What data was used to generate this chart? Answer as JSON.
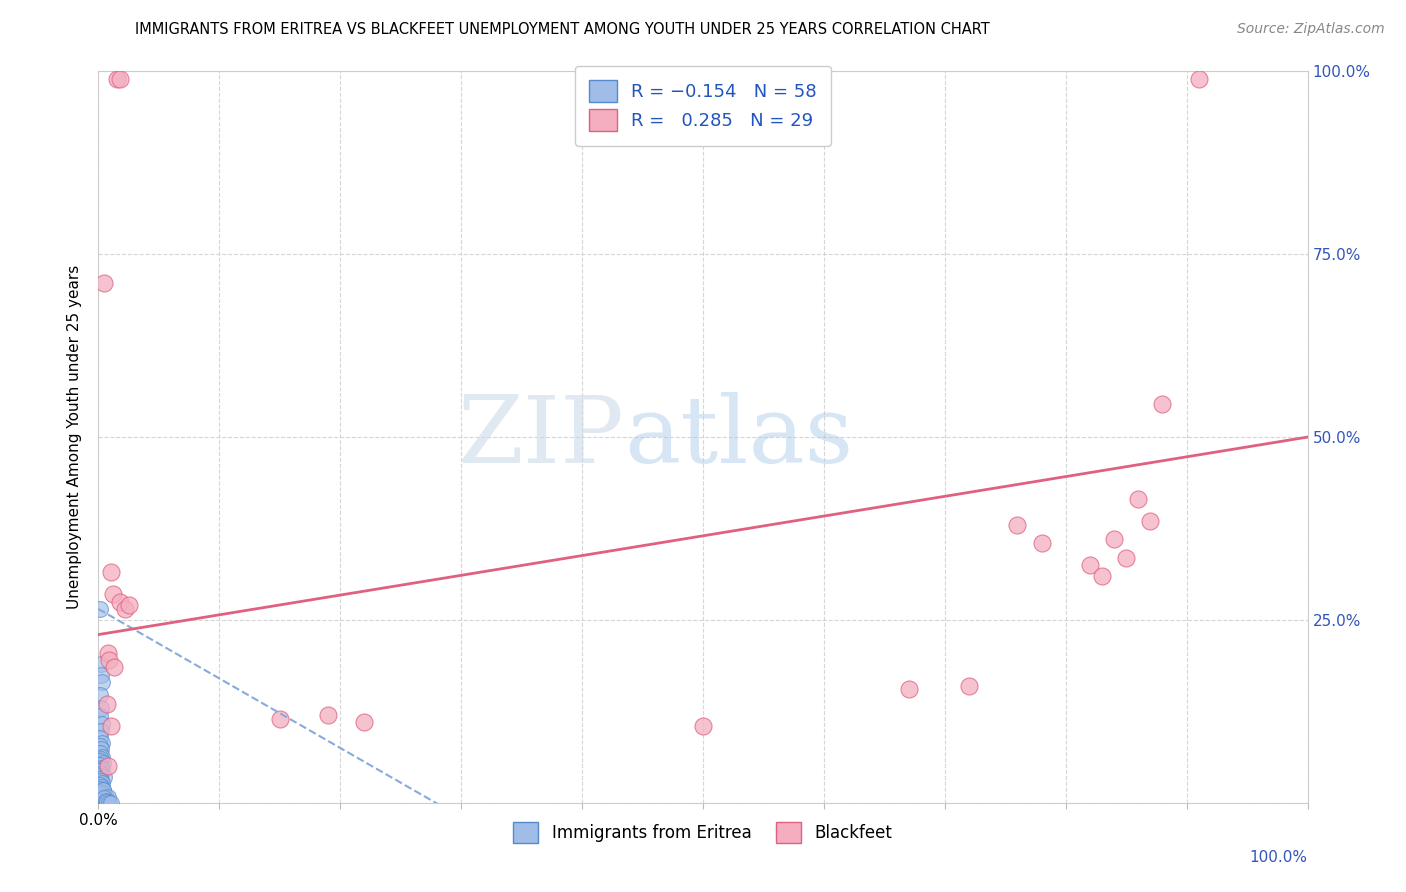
{
  "title": "IMMIGRANTS FROM ERITREA VS BLACKFEET UNEMPLOYMENT AMONG YOUTH UNDER 25 YEARS CORRELATION CHART",
  "source": "Source: ZipAtlas.com",
  "ylabel": "Unemployment Among Youth under 25 years",
  "xlim": [
    0,
    1
  ],
  "ylim": [
    0,
    1
  ],
  "xticks": [
    0.0,
    0.1,
    0.2,
    0.3,
    0.4,
    0.5,
    0.6,
    0.7,
    0.8,
    0.9,
    1.0
  ],
  "yticks": [
    0.0,
    0.25,
    0.5,
    0.75,
    1.0
  ],
  "legend_label1": "Immigrants from Eritrea",
  "legend_label2": "Blackfeet",
  "blue_color": "#a0bde8",
  "blue_edge_color": "#5588cc",
  "pink_color": "#f4aec0",
  "pink_edge_color": "#e06080",
  "blue_trendline_color": "#88aadd",
  "pink_trendline_color": "#e06080",
  "title_fontsize": 10.5,
  "source_fontsize": 10,
  "axis_label_fontsize": 11,
  "tick_fontsize": 11,
  "legend_fontsize": 13,
  "blue_points": [
    [
      0.001,
      0.265
    ],
    [
      0.002,
      0.19
    ],
    [
      0.002,
      0.175
    ],
    [
      0.003,
      0.165
    ],
    [
      0.001,
      0.148
    ],
    [
      0.002,
      0.13
    ],
    [
      0.001,
      0.118
    ],
    [
      0.003,
      0.108
    ],
    [
      0.002,
      0.098
    ],
    [
      0.001,
      0.088
    ],
    [
      0.003,
      0.082
    ],
    [
      0.001,
      0.078
    ],
    [
      0.002,
      0.073
    ],
    [
      0.001,
      0.068
    ],
    [
      0.003,
      0.063
    ],
    [
      0.002,
      0.06
    ],
    [
      0.001,
      0.057
    ],
    [
      0.004,
      0.055
    ],
    [
      0.001,
      0.052
    ],
    [
      0.002,
      0.048
    ],
    [
      0.003,
      0.046
    ],
    [
      0.001,
      0.043
    ],
    [
      0.002,
      0.04
    ],
    [
      0.001,
      0.037
    ],
    [
      0.005,
      0.035
    ],
    [
      0.001,
      0.032
    ],
    [
      0.002,
      0.03
    ],
    [
      0.003,
      0.027
    ],
    [
      0.001,
      0.024
    ],
    [
      0.002,
      0.022
    ],
    [
      0.001,
      0.019
    ],
    [
      0.004,
      0.017
    ],
    [
      0.001,
      0.015
    ],
    [
      0.002,
      0.012
    ],
    [
      0.001,
      0.01
    ],
    [
      0.003,
      0.008
    ],
    [
      0.001,
      0.006
    ],
    [
      0.002,
      0.004
    ],
    [
      0.001,
      0.002
    ],
    [
      0.002,
      0.001
    ],
    [
      0.001,
      0.0
    ],
    [
      0.003,
      0.0
    ],
    [
      0.002,
      0.0
    ],
    [
      0.001,
      0.0
    ],
    [
      0.004,
      0.0
    ],
    [
      0.001,
      0.0
    ],
    [
      0.005,
      0.0
    ],
    [
      0.002,
      0.0
    ],
    [
      0.006,
      0.008
    ],
    [
      0.007,
      0.004
    ],
    [
      0.003,
      0.013
    ],
    [
      0.004,
      0.018
    ],
    [
      0.008,
      0.008
    ],
    [
      0.005,
      0.006
    ],
    [
      0.006,
      0.003
    ],
    [
      0.007,
      0.001
    ],
    [
      0.009,
      0.0
    ],
    [
      0.01,
      0.0
    ]
  ],
  "pink_points": [
    [
      0.005,
      0.71
    ],
    [
      0.015,
      0.99
    ],
    [
      0.018,
      0.99
    ],
    [
      0.01,
      0.315
    ],
    [
      0.012,
      0.285
    ],
    [
      0.018,
      0.275
    ],
    [
      0.022,
      0.265
    ],
    [
      0.008,
      0.205
    ],
    [
      0.009,
      0.195
    ],
    [
      0.013,
      0.185
    ],
    [
      0.007,
      0.135
    ],
    [
      0.01,
      0.105
    ],
    [
      0.008,
      0.05
    ],
    [
      0.15,
      0.115
    ],
    [
      0.19,
      0.12
    ],
    [
      0.22,
      0.11
    ],
    [
      0.5,
      0.105
    ],
    [
      0.72,
      0.16
    ],
    [
      0.76,
      0.38
    ],
    [
      0.78,
      0.355
    ],
    [
      0.82,
      0.325
    ],
    [
      0.91,
      0.99
    ],
    [
      0.88,
      0.545
    ],
    [
      0.86,
      0.415
    ],
    [
      0.87,
      0.385
    ],
    [
      0.84,
      0.36
    ],
    [
      0.85,
      0.335
    ],
    [
      0.83,
      0.31
    ],
    [
      0.67,
      0.155
    ],
    [
      0.025,
      0.27
    ]
  ],
  "pink_trend_x": [
    0.0,
    1.0
  ],
  "pink_trend_y": [
    0.23,
    0.5
  ],
  "blue_trend_x": [
    0.0,
    0.3
  ],
  "blue_trend_y": [
    0.265,
    -0.02
  ]
}
